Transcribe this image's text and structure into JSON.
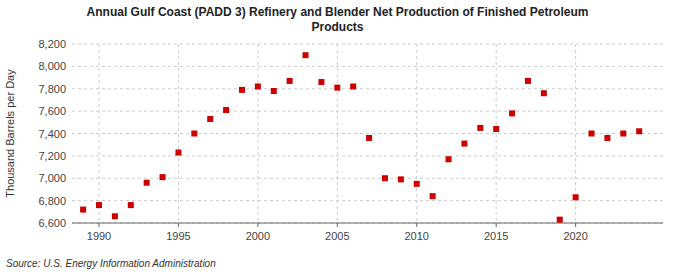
{
  "chart_data": {
    "type": "scatter",
    "title": "Annual Gulf Coast (PADD 3) Refinery and Blender Net Production of Finished Petroleum\nProducts",
    "ylabel": "Thousand Barrels per Day",
    "annotations": [
      "Source: U.S. Energy Information Administration"
    ],
    "x": [
      1989,
      1990,
      1991,
      1992,
      1993,
      1994,
      1995,
      1996,
      1997,
      1998,
      1999,
      2000,
      2001,
      2002,
      2003,
      2004,
      2005,
      2006,
      2007,
      2008,
      2009,
      2010,
      2011,
      2012,
      2013,
      2014,
      2015,
      2016,
      2017,
      2018,
      2019,
      2020,
      2021,
      2022,
      2023,
      2024
    ],
    "values": [
      6720,
      6760,
      6660,
      6760,
      6960,
      7010,
      7230,
      7400,
      7530,
      7610,
      7790,
      7820,
      7780,
      7870,
      8100,
      7860,
      7810,
      7820,
      7360,
      7000,
      6990,
      6950,
      6840,
      7170,
      7310,
      7450,
      7440,
      7580,
      7870,
      7760,
      6630,
      6830,
      7400,
      7360,
      7400,
      7420
    ],
    "color": "#cc0000",
    "marker": "square",
    "xlim": [
      1988.3,
      2025.5
    ],
    "xticks": [
      1990,
      1995,
      2000,
      2005,
      2010,
      2015,
      2020
    ],
    "ylim": [
      6600,
      8200
    ],
    "yticks": [
      {
        "value": 6600,
        "label": "6,600"
      },
      {
        "value": 6800,
        "label": "6,800"
      },
      {
        "value": 7000,
        "label": "7,000"
      },
      {
        "value": 7200,
        "label": "7,200"
      },
      {
        "value": 7400,
        "label": "7,400"
      },
      {
        "value": 7600,
        "label": "7,600"
      },
      {
        "value": 7800,
        "label": "7,800"
      },
      {
        "value": 8000,
        "label": "8,000"
      },
      {
        "value": 8200,
        "label": "8,200"
      }
    ],
    "grid": true
  }
}
